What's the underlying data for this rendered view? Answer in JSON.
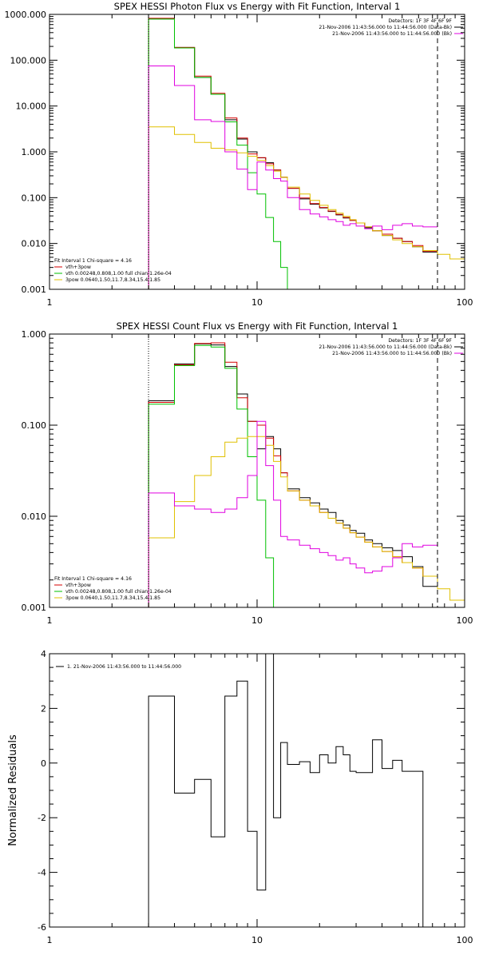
{
  "chart_data": [
    {
      "type": "line",
      "title": "SPEX HESSI Photon Flux vs Energy with Fit Function, Interval 1",
      "xscale": "log",
      "yscale": "log",
      "xlim": [
        1,
        100
      ],
      "ylim": [
        0.001,
        1000
      ],
      "x_tick_labels": [
        "1",
        "10",
        "100"
      ],
      "y_ticks": [
        1000,
        100,
        10,
        1,
        0.1,
        0.01,
        0.001
      ],
      "y_tick_labels": [
        "1000.000",
        "100.000",
        "10.000",
        "1.000",
        "0.100",
        "0.010",
        "0.001"
      ],
      "ylabel": "",
      "vlines": [
        {
          "x": 3.0,
          "style": "dotted",
          "color": "#000000"
        },
        {
          "x": 74.0,
          "style": "dashed",
          "color": "#000000"
        }
      ],
      "bin_edges": [
        3,
        4,
        5,
        6,
        7,
        8,
        9,
        10,
        11,
        12,
        13,
        14,
        16,
        18,
        20,
        22,
        24,
        26,
        28,
        30,
        33,
        36,
        40,
        45,
        50,
        56,
        63,
        74,
        85,
        100
      ],
      "series": [
        {
          "name": "",
          "color": "#000000",
          "values": [
            800,
            190,
            42,
            18,
            5.0,
            1.9,
            1.0,
            0.74,
            0.58,
            0.4,
            0.28,
            0.16,
            0.094,
            0.072,
            0.06,
            0.05,
            0.042,
            0.036,
            0.032,
            0.028,
            0.022,
            0.019,
            0.015,
            0.013,
            0.011,
            0.0085,
            0.0065
          ]
        },
        {
          "name": "vth+3pow",
          "color": "#d40000",
          "values": [
            820,
            190,
            45,
            19,
            5.5,
            2.0,
            0.9,
            0.75,
            0.55,
            0.4,
            0.28,
            0.16,
            0.098,
            0.074,
            0.061,
            0.051,
            0.043,
            0.037,
            0.032,
            0.028,
            0.023,
            0.019,
            0.016,
            0.013,
            0.011,
            0.009,
            0.0068
          ]
        },
        {
          "name": "vth 0.00248,0.808,1.00  full chian 1.26e-04",
          "color": "#00c000",
          "values": [
            790,
            185,
            42,
            18,
            4.5,
            1.4,
            0.35,
            0.12,
            0.037,
            0.011,
            0.003,
            0.001
          ]
        },
        {
          "name": "3pow 0.0640,1.50,11.7,8.34,15.4,1.85",
          "color": "#e0c000",
          "values": [
            3.5,
            2.4,
            1.6,
            1.2,
            1.1,
            0.95,
            0.8,
            0.65,
            0.5,
            0.38,
            0.28,
            0.17,
            0.12,
            0.087,
            0.068,
            0.055,
            0.046,
            0.039,
            0.033,
            0.028,
            0.023,
            0.019,
            0.015,
            0.012,
            0.01,
            0.0085,
            0.007,
            0.0058,
            0.0046
          ]
        },
        {
          "name": "",
          "color": "#e000e0",
          "values": [
            75,
            28,
            5.0,
            4.6,
            1.0,
            0.42,
            0.15,
            0.6,
            0.4,
            0.26,
            0.23,
            0.1,
            0.055,
            0.044,
            0.038,
            0.033,
            0.03,
            0.025,
            0.027,
            0.024,
            0.021,
            0.024,
            0.02,
            0.025,
            0.027,
            0.024,
            0.023
          ]
        }
      ],
      "legend": {
        "placement": "bottom-left",
        "header": "Fit Interval 1   Chi-square = 4.16",
        "entries": [
          {
            "label": "vth+3pow",
            "color": "#d40000"
          },
          {
            "label": "vth 0.00248,0.808,1.00  full chian 1.26e-04",
            "color": "#00c000"
          },
          {
            "label": "3pow 0.0640,1.50,11.7,8.34,15.4,1.85",
            "color": "#e0c000"
          }
        ]
      },
      "annotation": {
        "placement": "top-right",
        "lines": [
          {
            "text": "Detectors: 1F 3F 4F 6F 9F",
            "color": ""
          },
          {
            "text": "21-Nov-2006 11:43:56.000 to 11:44:56.000 (Data-Bk)",
            "color": "#000000"
          },
          {
            "text": "21-Nov-2006 11:43:56.000 to 11:44:56.000 (Bk)",
            "color": "#e000e0"
          }
        ]
      }
    },
    {
      "type": "line",
      "title": "SPEX HESSI Count Flux vs Energy with Fit Function, Interval 1",
      "xscale": "log",
      "yscale": "log",
      "xlim": [
        1,
        100
      ],
      "ylim": [
        0.001,
        1.0
      ],
      "x_tick_labels": [
        "1",
        "10",
        "100"
      ],
      "y_ticks": [
        1.0,
        0.1,
        0.01,
        0.001
      ],
      "y_tick_labels": [
        "1.000",
        "0.100",
        "0.010",
        "0.001"
      ],
      "ylabel": "",
      "vlines": [
        {
          "x": 3.0,
          "style": "dotted",
          "color": "#000000"
        },
        {
          "x": 74.0,
          "style": "dashed",
          "color": "#000000"
        }
      ],
      "bin_edges": [
        3,
        4,
        5,
        6,
        7,
        8,
        9,
        10,
        11,
        12,
        13,
        14,
        16,
        18,
        20,
        22,
        24,
        26,
        28,
        30,
        33,
        36,
        40,
        45,
        50,
        56,
        63,
        74,
        85,
        100
      ],
      "series": [
        {
          "name": "",
          "color": "#000000",
          "values": [
            0.185,
            0.47,
            0.78,
            0.76,
            0.44,
            0.22,
            0.11,
            0.055,
            0.075,
            0.055,
            0.03,
            0.02,
            0.016,
            0.014,
            0.012,
            0.011,
            0.009,
            0.008,
            0.007,
            0.0065,
            0.0055,
            0.005,
            0.0045,
            0.0042,
            0.0036,
            0.0028,
            0.0017
          ]
        },
        {
          "name": "vth+3pow",
          "color": "#d40000",
          "values": [
            0.178,
            0.46,
            0.79,
            0.8,
            0.49,
            0.2,
            0.11,
            0.1,
            0.072,
            0.046,
            0.03,
            0.019,
            0.015,
            0.013,
            0.011,
            0.0095,
            0.0084,
            0.0074,
            0.0066,
            0.0059,
            0.0052,
            0.0046,
            0.0041,
            0.0036,
            0.0031,
            0.0027,
            0.0022
          ]
        },
        {
          "name": "vth 0.00248,0.808,1.00  full chian 1.26e-04",
          "color": "#00c000",
          "values": [
            0.17,
            0.45,
            0.75,
            0.72,
            0.42,
            0.15,
            0.045,
            0.015,
            0.0035,
            0.001
          ]
        },
        {
          "name": "3pow 0.0640,1.50,11.7,8.34,15.4,1.85",
          "color": "#e0c000",
          "values": [
            0.0058,
            0.0145,
            0.028,
            0.045,
            0.065,
            0.072,
            0.075,
            0.075,
            0.06,
            0.04,
            0.027,
            0.019,
            0.015,
            0.013,
            0.011,
            0.0095,
            0.0084,
            0.0074,
            0.0066,
            0.0059,
            0.0052,
            0.0046,
            0.0041,
            0.0036,
            0.0031,
            0.0027,
            0.0022,
            0.0016,
            0.0012
          ]
        },
        {
          "name": "",
          "color": "#e000e0",
          "values": [
            0.018,
            0.013,
            0.012,
            0.011,
            0.012,
            0.016,
            0.028,
            0.11,
            0.036,
            0.015,
            0.006,
            0.0055,
            0.0048,
            0.0044,
            0.004,
            0.0037,
            0.0033,
            0.0035,
            0.003,
            0.0027,
            0.0024,
            0.0025,
            0.0028,
            0.0035,
            0.005,
            0.0046,
            0.0048
          ]
        }
      ],
      "legend": {
        "placement": "bottom-left",
        "header": "Fit Interval 1   Chi-square = 4.16",
        "entries": [
          {
            "label": "vth+3pow",
            "color": "#d40000"
          },
          {
            "label": "vth 0.00248,0.808,1.00  full chian 1.26e-04",
            "color": "#00c000"
          },
          {
            "label": "3pow 0.0640,1.50,11.7,8.34,15.4,1.85",
            "color": "#e0c000"
          }
        ]
      },
      "annotation": {
        "placement": "top-right",
        "lines": [
          {
            "text": "Detectors: 1F 3F 4F 6F 9F",
            "color": ""
          },
          {
            "text": "21-Nov-2006 11:43:56.000 to 11:44:56.000 (Data-Bk)",
            "color": "#000000"
          },
          {
            "text": "21-Nov-2006 11:43:56.000 to 11:44:56.000 (Bk)",
            "color": "#e000e0"
          }
        ]
      }
    },
    {
      "type": "line",
      "title": "",
      "xscale": "log",
      "yscale": "linear",
      "xlim": [
        1,
        100
      ],
      "ylim": [
        -6,
        4
      ],
      "x_tick_labels": [
        "1",
        "10",
        "100"
      ],
      "y_ticks": [
        4,
        2,
        0,
        -2,
        -4,
        -6
      ],
      "y_tick_labels": [
        "4",
        "2",
        "0",
        "-2",
        "-4",
        "-6"
      ],
      "ylabel": "Normalized Residuals",
      "vlines": [],
      "bin_edges": [
        3,
        4,
        5,
        6,
        7,
        8,
        9,
        10,
        11,
        12,
        13,
        14,
        16,
        18,
        20,
        22,
        24,
        26,
        28,
        30,
        33,
        36,
        40,
        45,
        50,
        56,
        63,
        74
      ],
      "series": [
        {
          "name": "1. 21-Nov-2006 11:43:56.000 to 11:44:56.000",
          "color": "#000000",
          "values": [
            2.45,
            -1.1,
            -0.6,
            -2.7,
            2.45,
            3.0,
            -2.5,
            -4.65,
            4.05,
            -2.0,
            0.75,
            -0.05,
            0.05,
            -0.35,
            0.3,
            0.0,
            0.6,
            0.3,
            -0.3,
            -0.35,
            -0.35,
            0.85,
            -0.2,
            0.1,
            -0.3,
            -0.3
          ]
        }
      ],
      "legend": {
        "placement": "top-left",
        "header": "",
        "entries": [
          {
            "label": "1. 21-Nov-2006 11:43:56.000 to 11:44:56.000",
            "color": "#000000"
          }
        ]
      },
      "annotation": {
        "placement": "",
        "lines": []
      }
    }
  ]
}
